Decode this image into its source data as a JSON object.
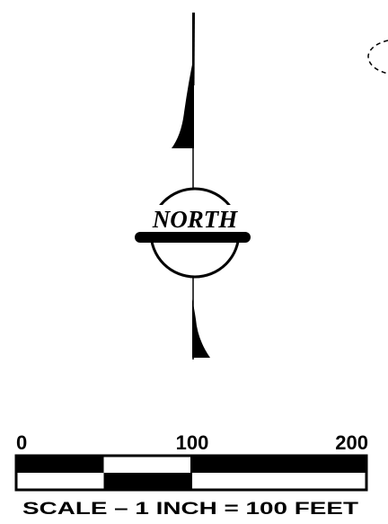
{
  "north_arrow": {
    "label": "NORTH"
  },
  "scale_bar": {
    "ticks": [
      {
        "value": 0,
        "label": "0"
      },
      {
        "value": 100,
        "label": "100"
      },
      {
        "value": 200,
        "label": "200"
      }
    ],
    "unit": "FEET",
    "segments": [
      {
        "from": 0,
        "to": 50,
        "top": "black",
        "bottom": "white"
      },
      {
        "from": 50,
        "to": 100,
        "top": "white",
        "bottom": "black"
      },
      {
        "from": 100,
        "to": 200,
        "top": "black",
        "bottom": "white"
      }
    ],
    "caption": "SCALE – 1 INCH = 100 FEET"
  },
  "colors": {
    "ink": "#000000",
    "paper": "#ffffff"
  }
}
